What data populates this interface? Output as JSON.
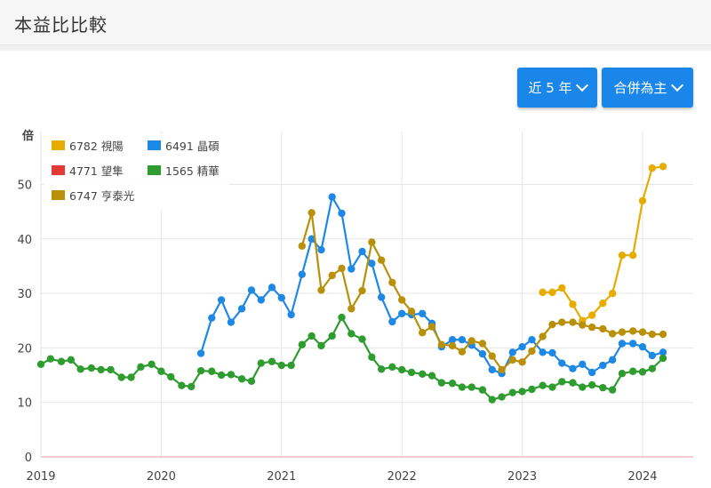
{
  "header": {
    "title": "本益比比較"
  },
  "controls": {
    "range_label": "近 5 年",
    "mode_label": "合併為主"
  },
  "chart_data": {
    "type": "line",
    "ylabel": "倍",
    "ylim": [
      0,
      55
    ],
    "yticks": [
      0,
      10,
      20,
      30,
      40,
      50
    ],
    "xlim": [
      2019,
      2024.2
    ],
    "xticks": [
      2019,
      2020,
      2021,
      2022,
      2023,
      2024
    ],
    "grid": true,
    "legend_position": "top-left",
    "series": [
      {
        "name": "6782 視陽",
        "color": "#e6ac00",
        "x": [
          2023.17,
          2023.25,
          2023.33,
          2023.42,
          2023.5,
          2023.58,
          2023.67,
          2023.75,
          2023.83,
          2023.92,
          2024.0,
          2024.08,
          2024.17
        ],
        "y": [
          30.2,
          30.2,
          31.0,
          28.0,
          25.0,
          26.0,
          28.2,
          30.0,
          37.0,
          37.0,
          47.0,
          53.0,
          53.3
        ]
      },
      {
        "name": "6491 晶碩",
        "color": "#1e88e5",
        "x": [
          2020.33,
          2020.42,
          2020.5,
          2020.58,
          2020.67,
          2020.75,
          2020.83,
          2020.92,
          2021.0,
          2021.08,
          2021.17,
          2021.25,
          2021.33,
          2021.42,
          2021.5,
          2021.58,
          2021.67,
          2021.75,
          2021.83,
          2021.92,
          2022.0,
          2022.08,
          2022.17,
          2022.25,
          2022.33,
          2022.42,
          2022.5,
          2022.58,
          2022.67,
          2022.75,
          2022.83,
          2022.92,
          2023.0,
          2023.08,
          2023.17,
          2023.25,
          2023.33,
          2023.42,
          2023.5,
          2023.58,
          2023.67,
          2023.75,
          2023.83,
          2023.92,
          2024.0,
          2024.08,
          2024.17
        ],
        "y": [
          19.0,
          25.5,
          28.8,
          24.7,
          27.2,
          30.6,
          28.8,
          31.1,
          29.2,
          26.1,
          33.5,
          40.0,
          38.0,
          47.7,
          44.7,
          34.5,
          37.7,
          35.5,
          29.3,
          24.8,
          26.3,
          26.1,
          26.3,
          24.5,
          20.2,
          21.5,
          21.5,
          20.5,
          18.9,
          16.0,
          15.3,
          19.2,
          20.2,
          21.5,
          19.2,
          19.1,
          17.2,
          16.2,
          17.0,
          15.5,
          16.8,
          17.8,
          20.8,
          20.8,
          20.2,
          18.6,
          19.2
        ]
      },
      {
        "name": "4771 望隼",
        "color": "#e53935",
        "x": [],
        "y": []
      },
      {
        "name": "1565 精華",
        "color": "#2e9c2e",
        "x": [
          2019.0,
          2019.08,
          2019.17,
          2019.25,
          2019.33,
          2019.42,
          2019.5,
          2019.58,
          2019.67,
          2019.75,
          2019.83,
          2019.92,
          2020.0,
          2020.08,
          2020.17,
          2020.25,
          2020.33,
          2020.42,
          2020.5,
          2020.58,
          2020.67,
          2020.75,
          2020.83,
          2020.92,
          2021.0,
          2021.08,
          2021.17,
          2021.25,
          2021.33,
          2021.42,
          2021.5,
          2021.58,
          2021.67,
          2021.75,
          2021.83,
          2021.92,
          2022.0,
          2022.08,
          2022.17,
          2022.25,
          2022.33,
          2022.42,
          2022.5,
          2022.58,
          2022.67,
          2022.75,
          2022.83,
          2022.92,
          2023.0,
          2023.08,
          2023.17,
          2023.25,
          2023.33,
          2023.42,
          2023.5,
          2023.58,
          2023.67,
          2023.75,
          2023.83,
          2023.92,
          2024.0,
          2024.08,
          2024.17
        ],
        "y": [
          17.0,
          18.0,
          17.5,
          17.8,
          16.1,
          16.3,
          16.0,
          16.0,
          14.6,
          14.6,
          16.5,
          17.0,
          15.7,
          14.7,
          13.1,
          12.9,
          15.8,
          15.7,
          15.0,
          15.1,
          14.3,
          13.9,
          17.2,
          17.5,
          16.8,
          16.8,
          20.6,
          22.2,
          20.4,
          22.2,
          25.6,
          22.6,
          21.6,
          18.3,
          16.1,
          16.5,
          16.0,
          15.5,
          15.2,
          14.9,
          13.6,
          13.5,
          12.8,
          12.8,
          12.3,
          10.5,
          11.0,
          11.8,
          12.0,
          12.4,
          13.1,
          12.8,
          13.8,
          13.6,
          12.8,
          13.2,
          12.7,
          12.3,
          15.3,
          15.7,
          15.6,
          16.2,
          18.1
        ]
      },
      {
        "name": "6747 亨泰光",
        "color": "#b8900a",
        "x": [
          2021.17,
          2021.25,
          2021.33,
          2021.42,
          2021.5,
          2021.58,
          2021.67,
          2021.75,
          2021.83,
          2021.92,
          2022.0,
          2022.08,
          2022.17,
          2022.25,
          2022.33,
          2022.42,
          2022.5,
          2022.58,
          2022.67,
          2022.75,
          2022.83,
          2022.92,
          2023.0,
          2023.08,
          2023.17,
          2023.25,
          2023.33,
          2023.42,
          2023.5,
          2023.58,
          2023.67,
          2023.75,
          2023.83,
          2023.92,
          2024.0,
          2024.08,
          2024.17
        ],
        "y": [
          38.7,
          44.8,
          30.6,
          33.3,
          34.6,
          27.2,
          30.5,
          39.4,
          36.1,
          32.0,
          28.8,
          26.7,
          22.8,
          23.9,
          20.6,
          20.4,
          19.3,
          21.3,
          20.8,
          18.5,
          16.0,
          17.8,
          17.4,
          19.4,
          22.1,
          24.3,
          24.7,
          24.7,
          24.2,
          23.8,
          23.5,
          22.6,
          22.9,
          23.1,
          22.9,
          22.5,
          22.5
        ]
      }
    ],
    "legend_rows": [
      [
        "6782 視陽",
        "6491 晶碩"
      ],
      [
        "4771 望隼",
        "1565 精華"
      ],
      [
        "6747 亨泰光"
      ]
    ]
  }
}
